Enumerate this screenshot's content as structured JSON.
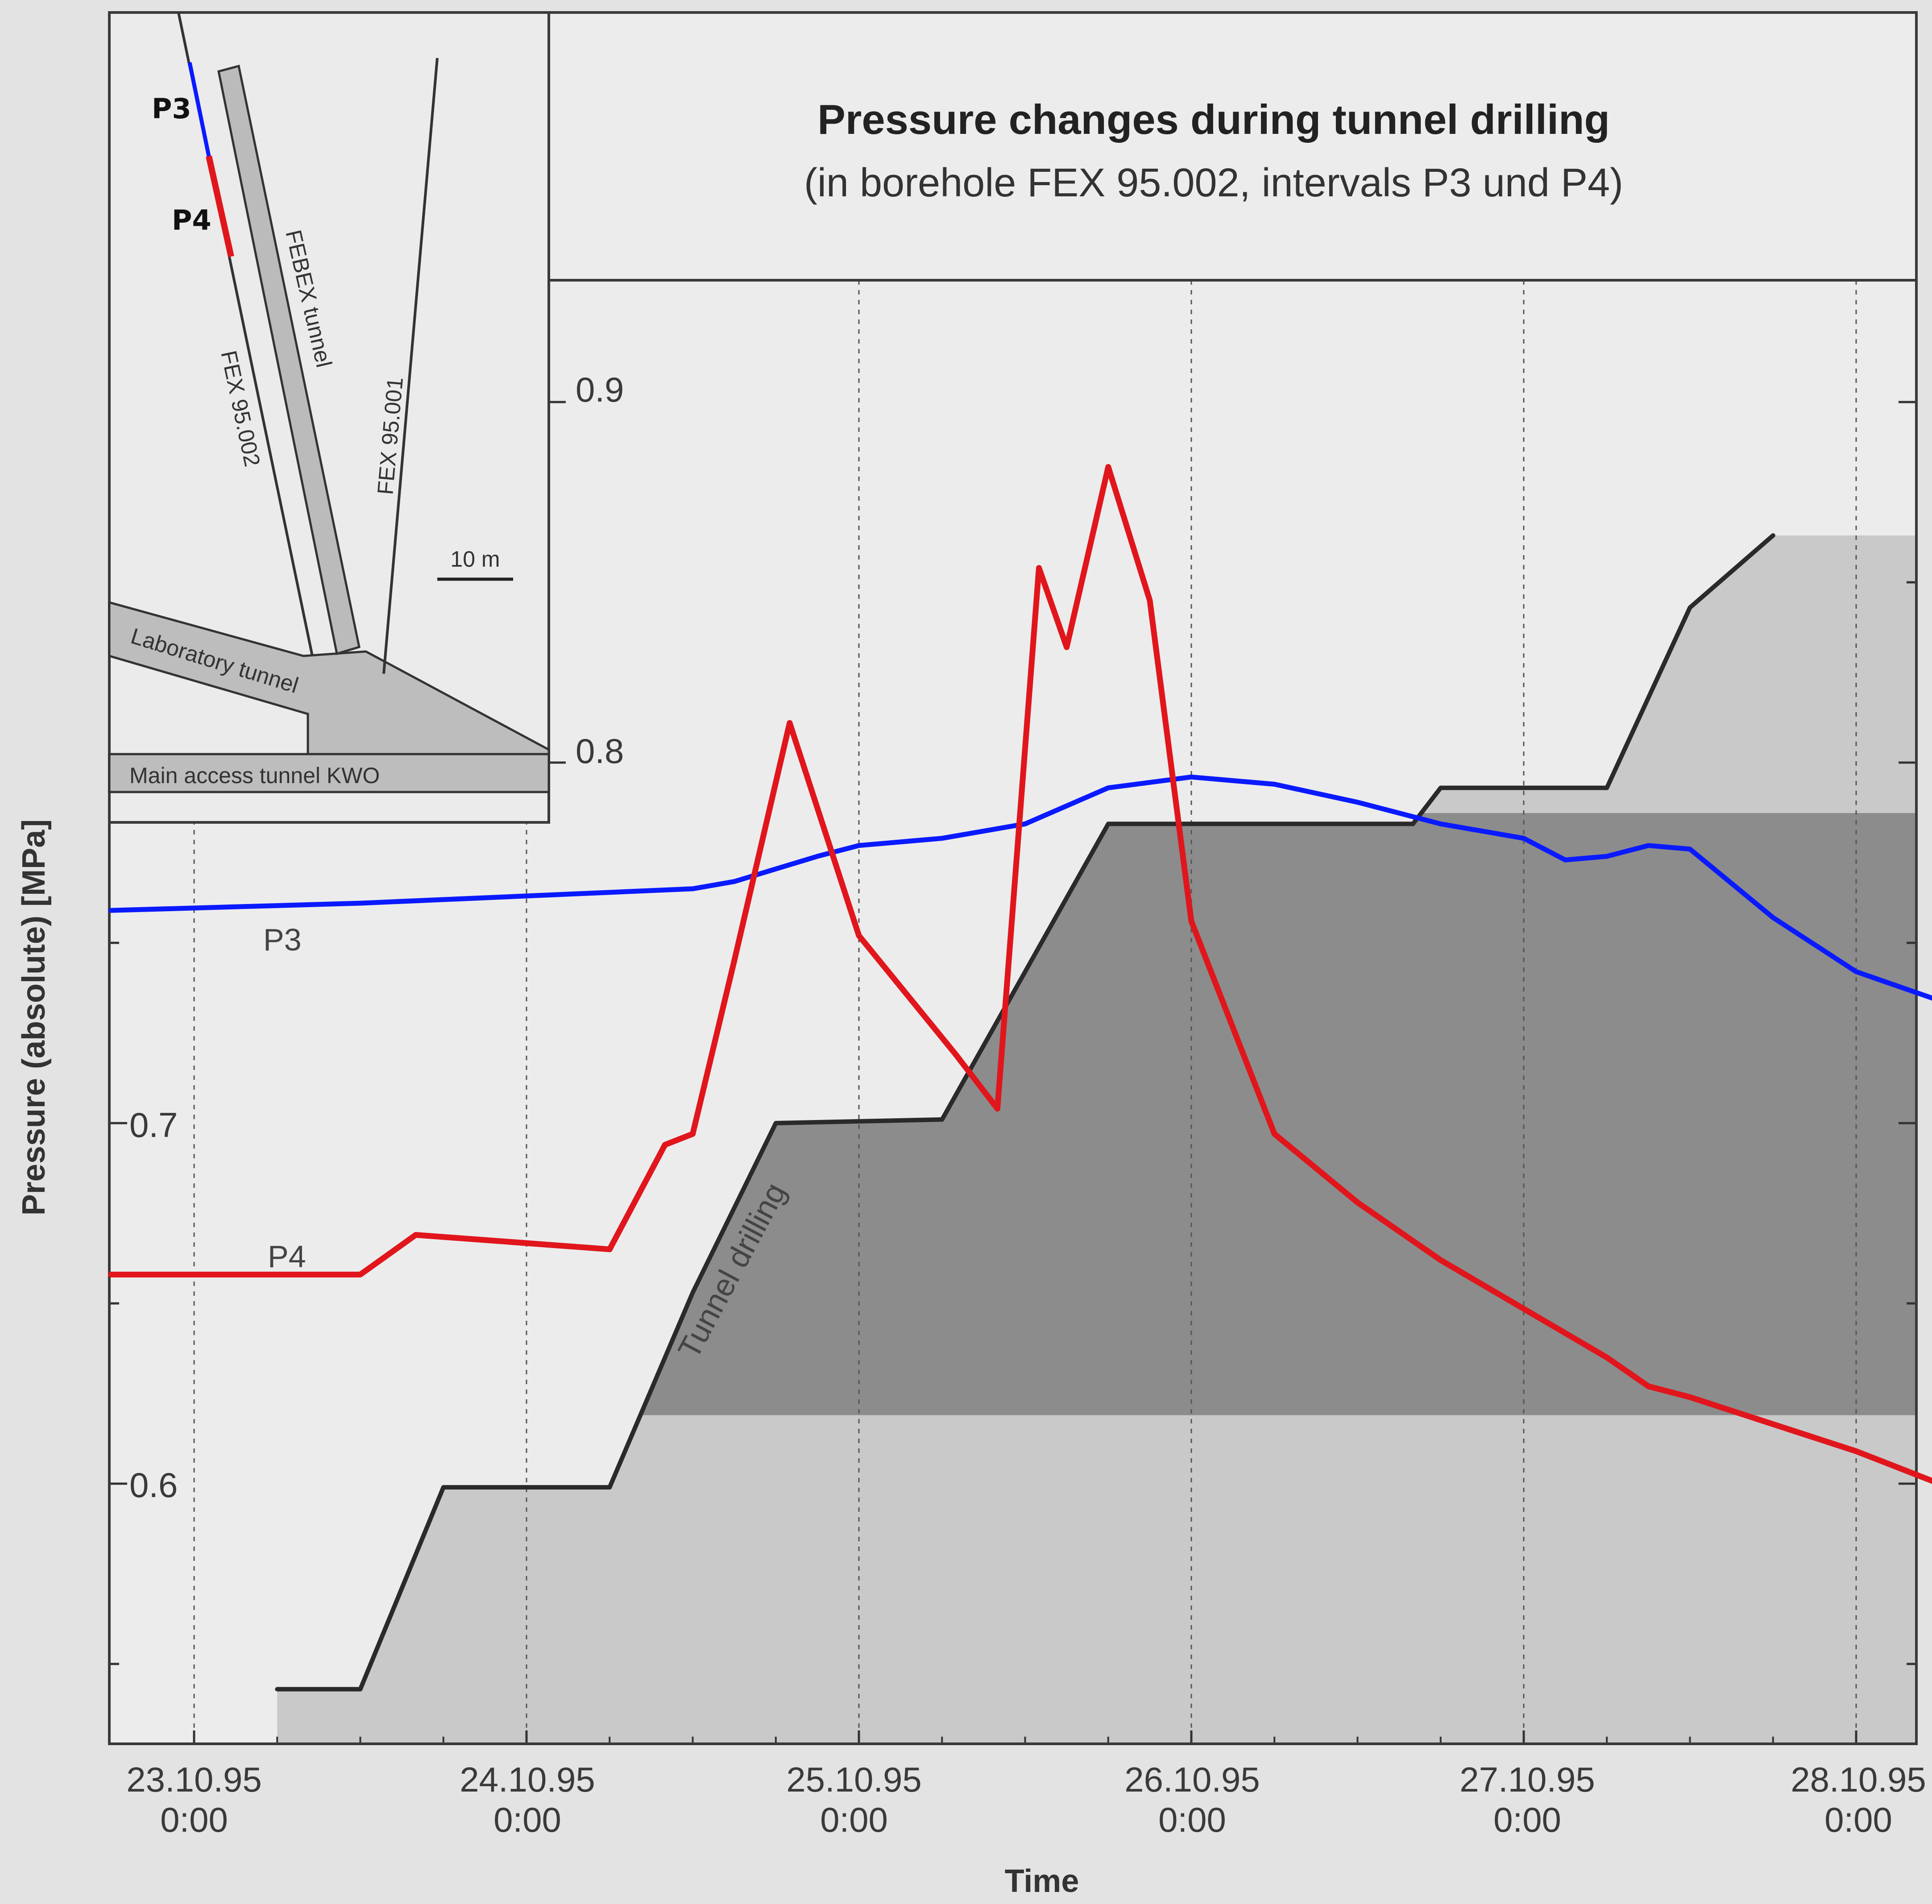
{
  "chart_data": {
    "type": "line",
    "title": "Pressure changes during tunnel drilling",
    "subtitle": "(in borehole FEX 95.002, intervals P3 und P4)",
    "xlabel": "Time",
    "ylabel": "Pressure (absolute) [MPa]",
    "ylim": [
      0.528,
      1.007
    ],
    "xlim": [
      "23.10.95 0:00 -0.25d",
      "28.10.95 0:00 +0.2d"
    ],
    "y_ticks": [
      "0.6",
      "0.7",
      "0.8",
      "0.9"
    ],
    "x_ticks": [
      {
        "date": "23.10.95",
        "time": "0:00"
      },
      {
        "date": "24.10.95",
        "time": "0:00"
      },
      {
        "date": "25.10.95",
        "time": "0:00"
      },
      {
        "date": "26.10.95",
        "time": "0:00"
      },
      {
        "date": "27.10.95",
        "time": "0:00"
      },
      {
        "date": "28.10.95",
        "time": "0:00"
      }
    ],
    "grid": "vertical dotted at each day",
    "series": [
      {
        "name": "P3",
        "color": "#0a1aff",
        "points": [
          [
            "22.10.95 18:00",
            0.759
          ],
          [
            "23.10.95 12:00",
            0.761
          ],
          [
            "24.10.95 12:00",
            0.765
          ],
          [
            "24.10.95 15:00",
            0.767
          ],
          [
            "24.10.95 21:00",
            0.774
          ],
          [
            "25.10.95 0:00",
            0.777
          ],
          [
            "25.10.95 6:00",
            0.779
          ],
          [
            "25.10.95 12:00",
            0.783
          ],
          [
            "25.10.95 18:00",
            0.793
          ],
          [
            "26.10.95 0:00",
            0.796
          ],
          [
            "26.10.95 6:00",
            0.794
          ],
          [
            "26.10.95 12:00",
            0.789
          ],
          [
            "26.10.95 18:00",
            0.783
          ],
          [
            "27.10.95 0:00",
            0.779
          ],
          [
            "27.10.95 3:00",
            0.773
          ],
          [
            "27.10.95 6:00",
            0.774
          ],
          [
            "27.10.95 9:00",
            0.777
          ],
          [
            "27.10.95 12:00",
            0.776
          ],
          [
            "27.10.95 18:00",
            0.757
          ],
          [
            "28.10.95 0:00",
            0.742
          ],
          [
            "28.10.95 6:00",
            0.734
          ]
        ]
      },
      {
        "name": "P4",
        "color": "#e0161c",
        "points": [
          [
            "22.10.95 18:00",
            0.658
          ],
          [
            "23.10.95 12:00",
            0.658
          ],
          [
            "23.10.95 16:00",
            0.669
          ],
          [
            "24.10.95 6:00",
            0.665
          ],
          [
            "24.10.95 10:00",
            0.694
          ],
          [
            "24.10.95 12:00",
            0.697
          ],
          [
            "24.10.95 15:00",
            0.745
          ],
          [
            "24.10.95 19:00",
            0.811
          ],
          [
            "25.10.95 0:00",
            0.752
          ],
          [
            "25.10.95 7:00",
            0.719
          ],
          [
            "25.10.95 10:00",
            0.704
          ],
          [
            "25.10.95 13:00",
            0.854
          ],
          [
            "25.10.95 15:00",
            0.832
          ],
          [
            "25.10.95 18:00",
            0.882
          ],
          [
            "25.10.95 21:00",
            0.845
          ],
          [
            "26.10.95 0:00",
            0.756
          ],
          [
            "26.10.95 6:00",
            0.697
          ],
          [
            "26.10.95 12:00",
            0.678
          ],
          [
            "26.10.95 18:00",
            0.662
          ],
          [
            "27.10.95 6:00",
            0.635
          ],
          [
            "27.10.95 9:00",
            0.627
          ],
          [
            "27.10.95 12:00",
            0.624
          ],
          [
            "28.10.95 0:00",
            0.609
          ],
          [
            "28.10.95 6:00",
            0.6
          ]
        ]
      },
      {
        "name": "Tunnel drilling",
        "color": "#2a2a2a",
        "points": [
          [
            "23.10.95 6:00",
            0.543
          ],
          [
            "23.10.95 12:00",
            0.543
          ],
          [
            "23.10.95 18:00",
            0.599
          ],
          [
            "24.10.95 6:00",
            0.599
          ],
          [
            "24.10.95 12:00",
            0.653
          ],
          [
            "24.10.95 18:00",
            0.7
          ],
          [
            "25.10.95 6:00",
            0.701
          ],
          [
            "25.10.95 18:00",
            0.783
          ],
          [
            "26.10.95 16:00",
            0.783
          ],
          [
            "26.10.95 18:00",
            0.793
          ],
          [
            "27.10.95 6:00",
            0.793
          ],
          [
            "27.10.95 12:00",
            0.843
          ],
          [
            "27.10.95 18:00",
            0.863
          ]
        ]
      }
    ],
    "series_labels": [
      "P3",
      "P4"
    ],
    "annotation": "Tunnel drilling",
    "shaded_band": [
      0.619,
      0.786
    ]
  },
  "inset": {
    "labels": {
      "febex": "FEBEX tunnel",
      "fex2": "FEX 95.002",
      "fex1": "FEX 95.001",
      "scale": "10 m",
      "lab": "Laboratory tunnel",
      "main": "Main access tunnel KWO",
      "p3": "P3",
      "p4": "P4"
    }
  },
  "colors": {
    "p3": "#0a1aff",
    "p4": "#e0161c",
    "drill": "#2a2a2a",
    "shade": "#8c8c8c",
    "bg": "#e6e6e6"
  }
}
